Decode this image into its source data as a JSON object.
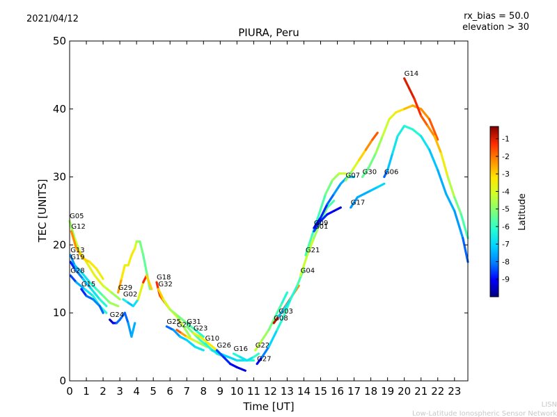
{
  "header": {
    "date": "2021/04/12",
    "params": [
      "rx_bias = 50.0",
      "elevation > 30"
    ]
  },
  "footer": {
    "org_short": "LISN",
    "org_full": "Low-Latitude Ionospheric Sensor Network"
  },
  "chart_data": {
    "type": "scatter",
    "title": "PIURA, Peru",
    "xlabel": "Time [UT]",
    "ylabel": "TEC [UNITS]",
    "xlim": [
      0,
      23.8
    ],
    "ylim": [
      0,
      50
    ],
    "xticks": [
      "0",
      "1",
      "2",
      "3",
      "4",
      "5",
      "6",
      "7",
      "8",
      "9",
      "10",
      "11",
      "12",
      "13",
      "14",
      "15",
      "16",
      "17",
      "18",
      "19",
      "20",
      "21",
      "22",
      "23"
    ],
    "yticks": [
      "0",
      "10",
      "20",
      "30",
      "40",
      "50"
    ],
    "colorbar": {
      "label": "Latitude",
      "range": [
        -10,
        -0.3
      ],
      "ticks": [
        "-1",
        "-2",
        "-3",
        "-4",
        "-5",
        "-6",
        "-7",
        "-8",
        "-9"
      ],
      "colormap": [
        "#000080",
        "#0000ff",
        "#0080ff",
        "#00d4ff",
        "#29ffce",
        "#7dff7a",
        "#ceff29",
        "#ffe600",
        "#ff8c00",
        "#ff2a00",
        "#800000"
      ]
    },
    "series": [
      {
        "name": "G05",
        "points": [
          [
            0.0,
            23.5,
            -5.0
          ],
          [
            0.3,
            21.0,
            -4.5
          ],
          [
            0.6,
            19.0,
            -4.0
          ],
          [
            1.0,
            17.5,
            -4.0
          ],
          [
            1.5,
            15.5,
            -3.5
          ],
          [
            2.0,
            14.0,
            -4.0
          ],
          [
            2.5,
            13.0,
            -4.5
          ],
          [
            3.0,
            12.0,
            -5.0
          ]
        ]
      },
      {
        "name": "G12",
        "points": [
          [
            0.1,
            22.0,
            -2.0
          ],
          [
            0.4,
            19.5,
            -2.5
          ],
          [
            0.8,
            18.0,
            -3.0
          ],
          [
            1.2,
            17.5,
            -3.0
          ],
          [
            1.6,
            16.5,
            -3.5
          ],
          [
            2.0,
            15.0,
            -3.5
          ]
        ]
      },
      {
        "name": "G13",
        "points": [
          [
            0.05,
            18.5,
            -8.0
          ],
          [
            0.3,
            17.0,
            -7.5
          ],
          [
            0.7,
            16.0,
            -7.0
          ],
          [
            1.2,
            14.5,
            -6.5
          ],
          [
            1.6,
            13.5,
            -6.0
          ],
          [
            2.0,
            12.5,
            -5.5
          ],
          [
            2.4,
            11.5,
            -5.0
          ],
          [
            2.9,
            11.0,
            -4.5
          ]
        ]
      },
      {
        "name": "G19",
        "points": [
          [
            0.05,
            17.5,
            -9.0
          ],
          [
            0.3,
            16.5,
            -8.5
          ],
          [
            0.8,
            15.0,
            -7.5
          ],
          [
            1.3,
            13.5,
            -7.0
          ],
          [
            1.8,
            12.0,
            -6.5
          ],
          [
            2.2,
            11.0,
            -6.0
          ]
        ]
      },
      {
        "name": "G28",
        "points": [
          [
            0.05,
            15.5,
            -9.0
          ],
          [
            0.4,
            14.5,
            -8.0
          ],
          [
            0.9,
            13.5,
            -7.0
          ],
          [
            1.4,
            12.5,
            -6.5
          ],
          [
            1.8,
            11.0,
            -6.0
          ],
          [
            2.2,
            10.0,
            -6.5
          ]
        ]
      },
      {
        "name": "G15",
        "points": [
          [
            0.7,
            13.5,
            -9.0
          ],
          [
            1.0,
            12.5,
            -8.5
          ],
          [
            1.4,
            12.0,
            -8.0
          ],
          [
            1.8,
            11.0,
            -8.0
          ],
          [
            2.0,
            10.0,
            -8.5
          ]
        ]
      },
      {
        "name": "G29",
        "points": [
          [
            2.9,
            13.0,
            -2.0
          ],
          [
            3.1,
            15.0,
            -3.0
          ],
          [
            3.3,
            17.0,
            -3.5
          ],
          [
            3.5,
            17.0,
            -4.0
          ],
          [
            3.7,
            18.5,
            -3.0
          ],
          [
            3.9,
            19.5,
            -3.5
          ],
          [
            4.0,
            20.5,
            -4.5
          ],
          [
            4.2,
            20.5,
            -5.0
          ],
          [
            4.4,
            18.5,
            -5.5
          ],
          [
            4.6,
            16.0,
            -5.5
          ],
          [
            4.8,
            13.5,
            -5.0
          ]
        ]
      },
      {
        "name": "G02",
        "points": [
          [
            3.2,
            12.0,
            -6.0
          ],
          [
            3.5,
            11.5,
            -7.0
          ],
          [
            3.8,
            11.0,
            -7.5
          ],
          [
            4.1,
            12.0,
            -6.0
          ],
          [
            4.4,
            14.5,
            -1.5
          ],
          [
            4.6,
            15.5,
            -1.0
          ],
          [
            4.9,
            13.5,
            -5.0
          ]
        ]
      },
      {
        "name": "G24",
        "points": [
          [
            2.4,
            9.0,
            -9.5
          ],
          [
            2.6,
            8.5,
            -9.5
          ],
          [
            2.8,
            8.5,
            -8.5
          ],
          [
            3.0,
            9.0,
            -8.0
          ],
          [
            3.3,
            10.0,
            -8.5
          ],
          [
            3.5,
            8.5,
            -8.0
          ],
          [
            3.7,
            6.5,
            -7.5
          ],
          [
            3.9,
            8.5,
            -7.5
          ]
        ]
      },
      {
        "name": "G18",
        "points": [
          [
            5.2,
            14.5,
            -1.0
          ],
          [
            5.4,
            12.5,
            -1.5
          ],
          [
            5.7,
            11.5,
            -2.0
          ],
          [
            6.0,
            10.5,
            -3.0
          ],
          [
            6.4,
            9.5,
            -4.0
          ],
          [
            6.8,
            8.0,
            -4.5
          ],
          [
            7.2,
            6.5,
            -5.0
          ]
        ]
      },
      {
        "name": "G32",
        "points": [
          [
            5.3,
            13.5,
            -2.5
          ],
          [
            5.6,
            12.0,
            -3.5
          ],
          [
            6.0,
            10.5,
            -4.5
          ],
          [
            6.5,
            9.5,
            -5.0
          ],
          [
            7.0,
            8.5,
            -5.5
          ],
          [
            7.5,
            7.5,
            -6.0
          ],
          [
            8.0,
            6.5,
            -6.5
          ]
        ]
      },
      {
        "name": "G25",
        "points": [
          [
            5.8,
            8.0,
            -8.5
          ],
          [
            6.2,
            7.5,
            -8.0
          ],
          [
            6.6,
            6.5,
            -7.5
          ],
          [
            7.0,
            6.0,
            -7.0
          ],
          [
            7.5,
            5.0,
            -7.0
          ],
          [
            8.0,
            4.5,
            -6.5
          ]
        ]
      },
      {
        "name": "G20",
        "points": [
          [
            6.4,
            7.5,
            -1.5
          ],
          [
            6.7,
            7.0,
            -2.0
          ],
          [
            7.0,
            6.5,
            -3.0
          ],
          [
            7.4,
            6.0,
            -4.0
          ],
          [
            7.8,
            5.5,
            -4.5
          ],
          [
            8.2,
            5.0,
            -5.0
          ]
        ]
      },
      {
        "name": "G31",
        "points": [
          [
            7.0,
            8.0,
            -5.0
          ],
          [
            7.4,
            7.0,
            -5.5
          ],
          [
            7.8,
            6.0,
            -6.0
          ],
          [
            8.3,
            5.0,
            -6.0
          ],
          [
            8.8,
            4.0,
            -6.5
          ],
          [
            9.3,
            3.5,
            -6.5
          ]
        ]
      },
      {
        "name": "G23",
        "points": [
          [
            7.4,
            7.0,
            -4.0
          ],
          [
            7.8,
            6.5,
            -3.5
          ],
          [
            8.3,
            5.5,
            -3.5
          ],
          [
            8.8,
            4.5,
            -3.0
          ],
          [
            9.2,
            3.5,
            -3.0
          ]
        ]
      },
      {
        "name": "G10",
        "points": [
          [
            8.1,
            5.5,
            -6.0
          ],
          [
            8.5,
            4.5,
            -6.5
          ],
          [
            9.0,
            4.0,
            -7.0
          ],
          [
            9.5,
            3.5,
            -7.0
          ],
          [
            10.0,
            3.0,
            -7.0
          ],
          [
            10.5,
            3.0,
            -6.5
          ],
          [
            11.0,
            3.0,
            -6.0
          ]
        ]
      },
      {
        "name": "G26",
        "points": [
          [
            8.8,
            4.5,
            -8.5
          ],
          [
            9.2,
            3.5,
            -8.5
          ],
          [
            9.6,
            2.5,
            -9.0
          ],
          [
            10.0,
            2.0,
            -9.0
          ],
          [
            10.5,
            1.5,
            -9.5
          ]
        ]
      },
      {
        "name": "G16",
        "points": [
          [
            9.8,
            4.0,
            -6.0
          ],
          [
            10.2,
            3.5,
            -6.5
          ],
          [
            10.6,
            3.0,
            -7.0
          ],
          [
            11.0,
            3.5,
            -6.5
          ],
          [
            11.3,
            4.0,
            -5.5
          ]
        ]
      },
      {
        "name": "G22",
        "points": [
          [
            11.1,
            4.5,
            -4.0
          ],
          [
            11.5,
            6.0,
            -4.5
          ],
          [
            11.9,
            7.5,
            -5.0
          ],
          [
            12.3,
            9.5,
            -5.5
          ],
          [
            12.7,
            11.5,
            -6.0
          ],
          [
            13.0,
            13.0,
            -6.5
          ]
        ]
      },
      {
        "name": "G27",
        "points": [
          [
            11.2,
            2.5,
            -9.5
          ],
          [
            11.5,
            3.5,
            -8.5
          ],
          [
            11.9,
            5.0,
            -7.5
          ],
          [
            12.4,
            7.5,
            -6.5
          ],
          [
            12.8,
            9.5,
            -6.0
          ],
          [
            13.2,
            12.0,
            -6.0
          ]
        ]
      },
      {
        "name": "G08",
        "points": [
          [
            12.2,
            8.5,
            -0.5
          ],
          [
            12.5,
            9.5,
            -1.0
          ],
          [
            12.9,
            11.0,
            -1.5
          ],
          [
            13.3,
            12.5,
            -2.0
          ],
          [
            13.7,
            14.0,
            -2.5
          ]
        ]
      },
      {
        "name": "G03",
        "points": [
          [
            12.5,
            9.5,
            -7.5
          ],
          [
            12.8,
            10.5,
            -7.0
          ],
          [
            13.2,
            12.0,
            -6.5
          ],
          [
            13.6,
            14.0,
            -6.0
          ],
          [
            14.0,
            16.5,
            -5.5
          ]
        ]
      },
      {
        "name": "G04",
        "points": [
          [
            13.8,
            15.5,
            -4.5
          ],
          [
            14.2,
            18.5,
            -4.0
          ],
          [
            14.6,
            21.0,
            -4.5
          ],
          [
            15.0,
            23.5,
            -5.0
          ],
          [
            15.4,
            25.5,
            -5.5
          ],
          [
            15.8,
            26.5,
            -6.0
          ]
        ]
      },
      {
        "name": "G21",
        "points": [
          [
            14.1,
            18.5,
            -5.5
          ],
          [
            14.5,
            21.5,
            -6.0
          ],
          [
            14.9,
            24.5,
            -6.0
          ],
          [
            15.3,
            27.5,
            -5.5
          ],
          [
            15.7,
            29.5,
            -5.0
          ],
          [
            16.1,
            30.5,
            -4.5
          ],
          [
            16.5,
            30.5,
            -4.0
          ]
        ]
      },
      {
        "name": "G01",
        "points": [
          [
            14.6,
            22.0,
            -8.5
          ],
          [
            15.0,
            23.5,
            -8.5
          ],
          [
            15.4,
            24.5,
            -9.0
          ],
          [
            15.8,
            25.0,
            -9.0
          ],
          [
            16.2,
            25.5,
            -9.5
          ]
        ]
      },
      {
        "name": "G09",
        "points": [
          [
            14.6,
            22.5,
            -9.5
          ],
          [
            15.0,
            24.0,
            -9.0
          ],
          [
            15.4,
            26.0,
            -8.5
          ],
          [
            15.8,
            27.5,
            -8.0
          ],
          [
            16.2,
            29.0,
            -7.5
          ],
          [
            16.6,
            30.0,
            -7.5
          ],
          [
            17.0,
            30.0,
            -7.0
          ]
        ]
      },
      {
        "name": "G17",
        "points": [
          [
            16.8,
            25.5,
            -8.0
          ],
          [
            17.2,
            27.0,
            -7.5
          ],
          [
            17.6,
            27.5,
            -7.5
          ],
          [
            18.0,
            28.0,
            -7.5
          ],
          [
            18.4,
            28.5,
            -7.0
          ],
          [
            18.8,
            29.0,
            -7.0
          ]
        ]
      },
      {
        "name": "G07",
        "points": [
          [
            16.5,
            29.5,
            -5.5
          ],
          [
            16.9,
            31.0,
            -4.5
          ],
          [
            17.3,
            32.5,
            -3.5
          ],
          [
            17.7,
            34.0,
            -2.5
          ],
          [
            18.1,
            35.5,
            -2.0
          ],
          [
            18.4,
            36.5,
            -1.5
          ]
        ]
      },
      {
        "name": "G30",
        "points": [
          [
            17.5,
            30.0,
            -5.5
          ],
          [
            17.9,
            31.5,
            -5.5
          ],
          [
            18.3,
            33.5,
            -5.0
          ],
          [
            18.7,
            36.0,
            -4.5
          ],
          [
            19.1,
            38.5,
            -4.0
          ],
          [
            19.5,
            39.5,
            -3.5
          ],
          [
            20.0,
            40.0,
            -3.0
          ],
          [
            20.5,
            40.5,
            -2.5
          ],
          [
            21.0,
            40.0,
            -2.5
          ],
          [
            21.5,
            38.5,
            -2.0
          ],
          [
            22.0,
            35.5,
            -1.5
          ]
        ]
      },
      {
        "name": "G06",
        "points": [
          [
            18.8,
            30.0,
            -9.0
          ],
          [
            19.0,
            31.0,
            -7.5
          ],
          [
            19.3,
            33.5,
            -7.0
          ],
          [
            19.6,
            36.0,
            -6.5
          ],
          [
            20.0,
            37.5,
            -6.5
          ],
          [
            20.5,
            37.0,
            -6.0
          ],
          [
            21.0,
            36.0,
            -6.5
          ],
          [
            21.5,
            34.0,
            -7.0
          ],
          [
            22.0,
            31.0,
            -7.5
          ],
          [
            22.5,
            27.5,
            -7.5
          ],
          [
            23.0,
            25.0,
            -7.5
          ],
          [
            23.5,
            21.0,
            -8.0
          ],
          [
            23.8,
            17.5,
            -8.5
          ]
        ]
      },
      {
        "name": "G14",
        "points": [
          [
            20.0,
            44.5,
            -1.0
          ],
          [
            20.3,
            43.0,
            -1.0
          ],
          [
            20.6,
            41.5,
            -1.0
          ],
          [
            21.0,
            39.0,
            -1.5
          ],
          [
            21.4,
            37.5,
            -2.0
          ],
          [
            21.8,
            36.0,
            -2.5
          ],
          [
            22.2,
            33.5,
            -3.0
          ],
          [
            22.6,
            30.0,
            -4.0
          ],
          [
            23.0,
            27.0,
            -5.0
          ],
          [
            23.4,
            24.5,
            -5.5
          ],
          [
            23.8,
            21.0,
            -6.0
          ]
        ]
      }
    ]
  }
}
